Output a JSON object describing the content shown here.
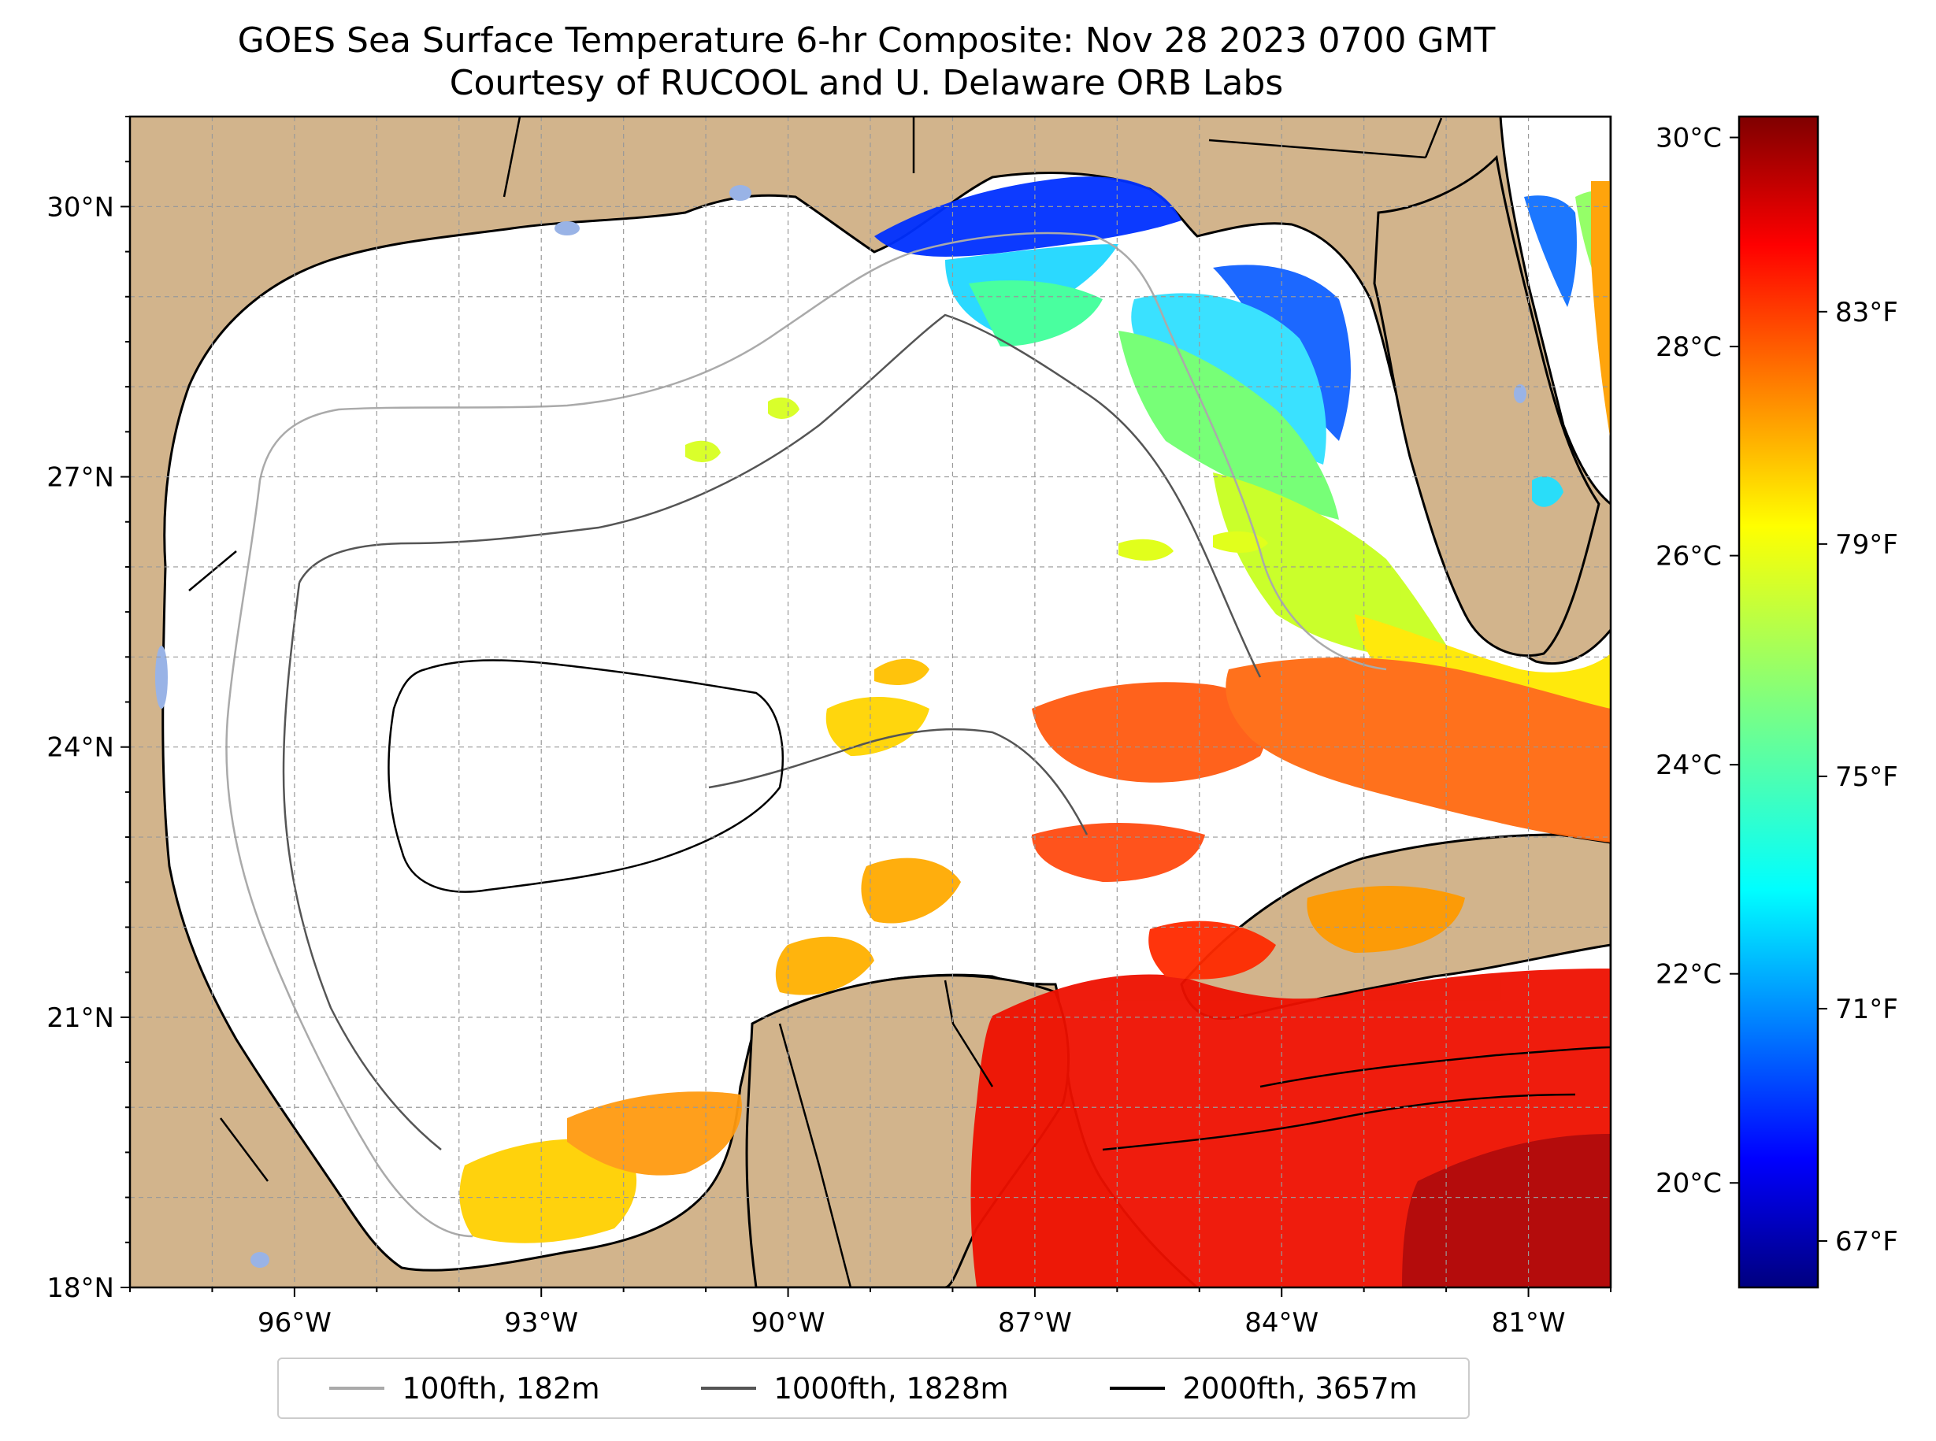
{
  "title_line1": "GOES Sea Surface Temperature 6-hr Composite: Nov 28 2023 0700 GMT",
  "title_line2": "Courtesy of RUCOOL and U. Delaware ORB Labs",
  "map": {
    "lon_range": [
      -98,
      -80
    ],
    "lat_range": [
      18,
      31
    ],
    "lat_labels": [
      "30°N",
      "27°N",
      "24°N",
      "21°N",
      "18°N"
    ],
    "lon_labels": [
      "96°W",
      "93°W",
      "90°W",
      "87°W",
      "84°W",
      "81°W"
    ],
    "colors": {
      "land": "#d2b48c",
      "ocean": "#ffffff",
      "lakes": "#99b3e6"
    }
  },
  "colorbar": {
    "range_c": [
      19,
      30.2
    ],
    "colormap": "jet",
    "celsius_labels": [
      "30°C",
      "28°C",
      "26°C",
      "24°C",
      "22°C",
      "20°C"
    ],
    "fahrenheit_labels": [
      "83°F",
      "79°F",
      "75°F",
      "71°F",
      "67°F"
    ]
  },
  "legend": [
    {
      "label": "100fth, 182m",
      "color": "#aaaaaa"
    },
    {
      "label": "1000fth, 1828m",
      "color": "#555555"
    },
    {
      "label": "2000fth, 3657m",
      "color": "#000000"
    }
  ]
}
